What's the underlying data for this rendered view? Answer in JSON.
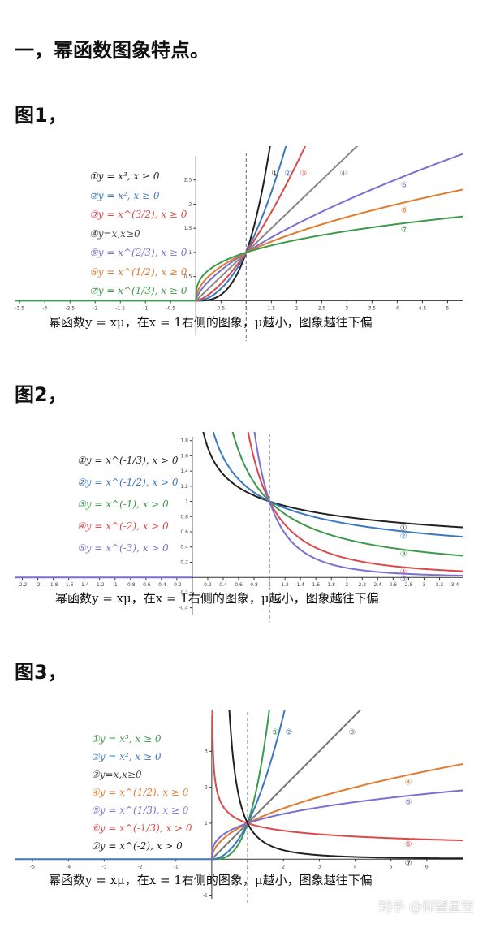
{
  "section_title": "一，幂函数图象特点。",
  "figures": [
    {
      "label": "图1，",
      "caption": "幂函数y = xμ，在x = 1右侧的图象，μ越小，图象越往下偏",
      "legend": [
        {
          "text": "①y = x³, x ≥ 0",
          "color": "#222222"
        },
        {
          "text": "②y = x², x ≥ 0",
          "color": "#3a78c0"
        },
        {
          "text": "③y = x^(3/2), x ≥ 0",
          "color": "#d94b4b"
        },
        {
          "text": "④y=x,x≥0",
          "color": "#444444"
        },
        {
          "text": "⑤y = x^(2/3), x ≥ 0",
          "color": "#7b6fd0"
        },
        {
          "text": "⑥y = x^(1/2), x ≥ 0",
          "color": "#e07a2e"
        },
        {
          "text": "⑦y = x^(1/3), x ≥ 0",
          "color": "#3c9a4a"
        }
      ]
    },
    {
      "label": "图2，",
      "caption": "幂函数y = xμ，在x = 1右侧的图象，μ越小，图象越往下偏",
      "legend": [
        {
          "text": "①y = x^(-1/3), x > 0",
          "color": "#222222"
        },
        {
          "text": "②y = x^(-1/2), x > 0",
          "color": "#3a78c0"
        },
        {
          "text": "③y = x^(-1), x > 0",
          "color": "#3c9a4a"
        },
        {
          "text": "④y = x^(-2), x > 0",
          "color": "#d94b4b"
        },
        {
          "text": "⑤y = x^(-3), x > 0",
          "color": "#7b6fd0"
        }
      ]
    },
    {
      "label": "图3，",
      "caption": "幂函数y = xμ，在x = 1右侧的图象，μ越小，图象越往下偏",
      "legend": [
        {
          "text": "①y = x³, x ≥ 0",
          "color": "#3c9a4a"
        },
        {
          "text": "②y = x², x ≥ 0",
          "color": "#3a78c0"
        },
        {
          "text": "③y=x,x≥0",
          "color": "#444444"
        },
        {
          "text": "④y = x^(1/2), x ≥ 0",
          "color": "#e07a2e"
        },
        {
          "text": "⑤y = x^(1/3), x ≥ 0",
          "color": "#7b6fd0"
        },
        {
          "text": "⑥y = x^(-1/3), x > 0",
          "color": "#d94b4b"
        },
        {
          "text": "⑦y = x^(-2), x > 0",
          "color": "#222222"
        }
      ]
    }
  ],
  "chart_data": [
    {
      "type": "line",
      "x_range": [
        -3.6,
        5.3
      ],
      "y_range": [
        -0.7,
        3.0
      ],
      "x_ticks": [
        -3.5,
        -3,
        -2.5,
        -2,
        -1.5,
        -1,
        -0.5,
        0.5,
        1,
        1.5,
        2,
        2.5,
        3,
        3.5,
        4,
        4.5,
        5
      ],
      "y_ticks": [
        0.5,
        1,
        1.5,
        2,
        2.5
      ],
      "series": [
        {
          "name": "①",
          "exponent": 3,
          "color": "#222222"
        },
        {
          "name": "②",
          "exponent": 2,
          "color": "#3a78c0"
        },
        {
          "name": "③",
          "exponent": 1.5,
          "color": "#d94b4b"
        },
        {
          "name": "④",
          "exponent": 1,
          "color": "#888888"
        },
        {
          "name": "⑤",
          "exponent": 0.6667,
          "color": "#7b6fd0"
        },
        {
          "name": "⑥",
          "exponent": 0.5,
          "color": "#e07a2e"
        },
        {
          "name": "⑦",
          "exponent": 0.3333,
          "color": "#3c9a4a"
        }
      ],
      "reference_line_x": 1
    },
    {
      "type": "line",
      "x_range": [
        -2.3,
        3.5
      ],
      "y_range": [
        -0.5,
        1.85
      ],
      "x_ticks": [
        -2.2,
        -2,
        -1.8,
        -1.6,
        -1.4,
        -1.2,
        -1,
        -0.8,
        -0.6,
        -0.4,
        -0.2,
        0.2,
        0.4,
        0.6,
        0.8,
        1,
        1.2,
        1.4,
        1.6,
        1.8,
        2,
        2.2,
        2.4,
        2.6,
        2.8,
        3,
        3.2,
        3.4
      ],
      "y_ticks": [
        -0.4,
        -0.2,
        0.2,
        0.4,
        0.6,
        0.8,
        1,
        1.2,
        1.4,
        1.6,
        1.8
      ],
      "series": [
        {
          "name": "①",
          "exponent": -0.3333,
          "color": "#222222"
        },
        {
          "name": "②",
          "exponent": -0.5,
          "color": "#3a78c0"
        },
        {
          "name": "③",
          "exponent": -1,
          "color": "#3c9a4a"
        },
        {
          "name": "④",
          "exponent": -2,
          "color": "#d94b4b"
        },
        {
          "name": "⑤",
          "exponent": -3,
          "color": "#7b6fd0"
        }
      ],
      "reference_line_x": 1
    },
    {
      "type": "line",
      "x_range": [
        -5.5,
        7
      ],
      "y_range": [
        -1.1,
        4.0
      ],
      "x_ticks": [
        -5,
        -4,
        -3,
        -2,
        -1,
        1,
        2,
        3,
        4,
        5,
        6
      ],
      "y_ticks": [
        -1,
        1,
        2,
        3
      ],
      "series": [
        {
          "name": "①",
          "exponent": 3,
          "color": "#3c9a4a"
        },
        {
          "name": "②",
          "exponent": 2,
          "color": "#3a78c0"
        },
        {
          "name": "③",
          "exponent": 1,
          "color": "#777777"
        },
        {
          "name": "④",
          "exponent": 0.5,
          "color": "#e07a2e"
        },
        {
          "name": "⑤",
          "exponent": 0.3333,
          "color": "#7b6fd0"
        },
        {
          "name": "⑥",
          "exponent": -0.3333,
          "color": "#d94b4b"
        },
        {
          "name": "⑦",
          "exponent": -2,
          "color": "#222222"
        }
      ],
      "reference_line_x": 1
    }
  ],
  "watermark": "知乎 @仰望星空"
}
